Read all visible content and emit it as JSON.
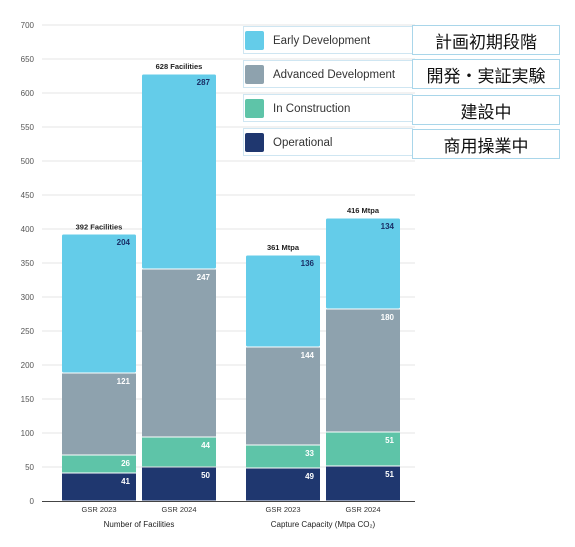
{
  "legend": {
    "items": [
      {
        "label": "Early Development",
        "color": "#64cce9",
        "jp": "計画初期段階"
      },
      {
        "label": "Advanced Development",
        "color": "#8ea2ae",
        "jp": "開発・実証実験"
      },
      {
        "label": "In Construction",
        "color": "#5ec4a8",
        "jp": "建設中"
      },
      {
        "label": "Operational",
        "color": "#1f376f",
        "jp": "商用操業中"
      }
    ]
  },
  "chart_data": {
    "type": "bar",
    "stacked": true,
    "ylim": [
      0,
      700
    ],
    "yticks": [
      0,
      50,
      100,
      150,
      200,
      250,
      300,
      350,
      400,
      450,
      500,
      550,
      600,
      650,
      700
    ],
    "grid": true,
    "legend_position": "top-right",
    "groups": [
      {
        "label": "Number of Facilities",
        "bars": [
          {
            "x": "GSR 2023",
            "total_label": "392 Facilities",
            "values": [
              41,
              26,
              121,
              204
            ]
          },
          {
            "x": "GSR 2024",
            "total_label": "628 Facilities",
            "values": [
              50,
              44,
              247,
              287
            ]
          }
        ]
      },
      {
        "label": "Capture Capacity (Mtpa CO₂)",
        "bars": [
          {
            "x": "GSR 2023",
            "total_label": "361 Mtpa",
            "values": [
              49,
              33,
              144,
              136
            ]
          },
          {
            "x": "GSR 2024",
            "total_label": "416 Mtpa",
            "values": [
              51,
              51,
              180,
              134
            ]
          }
        ]
      }
    ],
    "series": [
      {
        "name": "Operational",
        "color": "#1f376f",
        "label_color": "#ffffff"
      },
      {
        "name": "In Construction",
        "color": "#5ec4a8",
        "label_color": "#ffffff"
      },
      {
        "name": "Advanced Development",
        "color": "#8ea2ae",
        "label_color": "#ffffff"
      },
      {
        "name": "Early Development",
        "color": "#64cce9",
        "label_color": "#1a2f66"
      }
    ]
  }
}
